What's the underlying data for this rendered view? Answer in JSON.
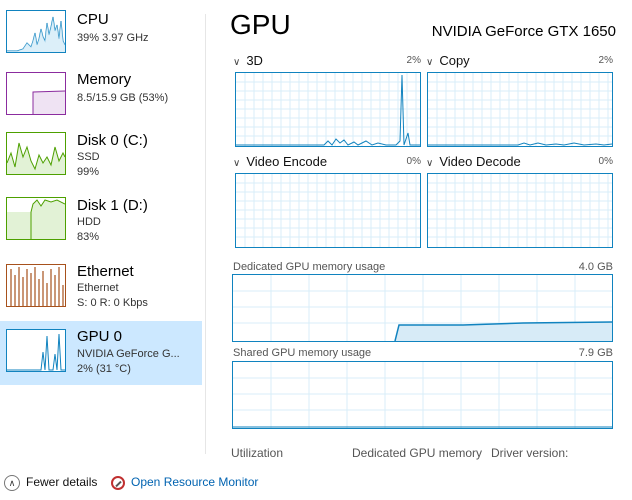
{
  "sidebar": {
    "items": [
      {
        "title": "CPU",
        "line1": "39%  3.97 GHz",
        "line2": "",
        "color": "#1183bf"
      },
      {
        "title": "Memory",
        "line1": "8.5/15.9 GB (53%)",
        "line2": "",
        "color": "#8b2c9f"
      },
      {
        "title": "Disk 0 (C:)",
        "line1": "SSD",
        "line2": "99%",
        "color": "#4da000"
      },
      {
        "title": "Disk 1 (D:)",
        "line1": "HDD",
        "line2": "83%",
        "color": "#4da000"
      },
      {
        "title": "Ethernet",
        "line1": "Ethernet",
        "line2": "S: 0  R: 0 Kbps",
        "color": "#a7511c"
      },
      {
        "title": "GPU 0",
        "line1": "NVIDIA GeForce G...",
        "line2": "2%  (31 °C)",
        "color": "#1183bf"
      }
    ]
  },
  "main": {
    "title": "GPU",
    "model": "NVIDIA GeForce GTX 1650",
    "engines": [
      {
        "label": "3D",
        "percent": "2%"
      },
      {
        "label": "Copy",
        "percent": "2%"
      },
      {
        "label": "Video Encode",
        "percent": "0%"
      },
      {
        "label": "Video Decode",
        "percent": "0%"
      }
    ],
    "dedicated": {
      "label": "Dedicated GPU memory usage",
      "max": "4.0 GB"
    },
    "shared": {
      "label": "Shared GPU memory usage",
      "max": "7.9 GB"
    },
    "footer": {
      "utilization": "Utilization",
      "dedicated_memory": "Dedicated GPU memory",
      "driver_version": "Driver version:"
    }
  },
  "bottom": {
    "fewer_details": "Fewer details",
    "open_resource_monitor": "Open Resource Monitor"
  },
  "colors": {
    "accent": "#1183bf",
    "selected_bg": "#cce8ff",
    "link": "#0063b1",
    "grid": "#d9eef8"
  }
}
